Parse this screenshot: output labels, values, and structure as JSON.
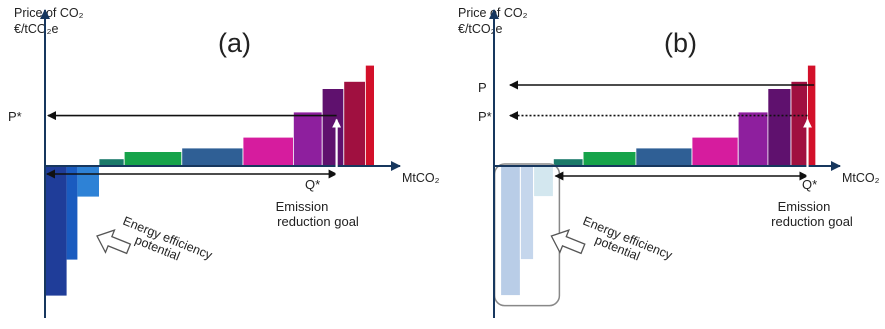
{
  "colors": {
    "axis": "#17375e",
    "arrow": "#111111",
    "note_arrow": "#ffffff",
    "highlight_box": "#888888"
  },
  "chart_data": [
    {
      "type": "bar",
      "panel_label": "(a)",
      "y_axis_title_line1": "Price of CO₂",
      "y_axis_title_line2": "€/tCO₂e",
      "x_axis_label": "MtCO₂",
      "price_labels": [
        "P*"
      ],
      "price_levels": [
        {
          "label": "P*",
          "value": 0.28,
          "style": "solid"
        }
      ],
      "q_label": "Q*",
      "goal_label_line1": "Emission",
      "goal_label_line2": "reduction goal",
      "ee_label_line1": "Energy efficiency",
      "ee_label_line2": "potential",
      "xlim": [
        0,
        100
      ],
      "ylim": [
        -0.72,
        0.58
      ],
      "quantity_span": [
        0,
        81
      ],
      "negative_bars": [
        {
          "x0": 0,
          "x1": 6,
          "value": -0.72,
          "color": "#1f3d99"
        },
        {
          "x0": 6,
          "x1": 9,
          "value": -0.52,
          "color": "#1a5bbf"
        },
        {
          "x0": 9,
          "x1": 15,
          "value": -0.17,
          "color": "#2e82d6"
        }
      ],
      "positive_bars": [
        {
          "x0": 15,
          "x1": 22,
          "value": 0.04,
          "color": "#1b7a6a"
        },
        {
          "x0": 22,
          "x1": 38,
          "value": 0.08,
          "color": "#16a34a"
        },
        {
          "x0": 38,
          "x1": 55,
          "value": 0.1,
          "color": "#2f5f95"
        },
        {
          "x0": 55,
          "x1": 69,
          "value": 0.16,
          "color": "#d61c9e"
        },
        {
          "x0": 69,
          "x1": 77,
          "value": 0.3,
          "color": "#8e1f9e"
        },
        {
          "x0": 77,
          "x1": 83,
          "value": 0.43,
          "color": "#5f116e"
        },
        {
          "x0": 83,
          "x1": 89,
          "value": 0.47,
          "color": "#a01040"
        },
        {
          "x0": 89,
          "x1": 91.5,
          "value": 0.56,
          "color": "#d3102a"
        }
      ],
      "greyed_energy_efficiency": false
    },
    {
      "type": "bar",
      "panel_label": "(b)",
      "y_axis_title_line1": "Price of CO₂",
      "y_axis_title_line2": "€/tCO₂e",
      "x_axis_label": "MtCO₂",
      "price_labels": [
        "P",
        "P*"
      ],
      "price_levels": [
        {
          "label": "P",
          "value": 0.45,
          "style": "solid"
        },
        {
          "label": "P*",
          "value": 0.28,
          "style": "dotted"
        }
      ],
      "q_label": "Q*",
      "goal_label_line1": "Emission",
      "goal_label_line2": "reduction goal",
      "ee_label_line1": "Energy efficiency",
      "ee_label_line2": "potential",
      "xlim": [
        0,
        100
      ],
      "ylim": [
        -0.72,
        0.58
      ],
      "quantity_span": [
        18,
        95
      ],
      "negative_bars": [
        {
          "x0": 2,
          "x1": 8,
          "value": -0.72,
          "color": "#b9cde7"
        },
        {
          "x0": 8,
          "x1": 12,
          "value": -0.52,
          "color": "#c5d6ec"
        },
        {
          "x0": 12,
          "x1": 18,
          "value": -0.17,
          "color": "#d3e7ef"
        }
      ],
      "positive_bars": [
        {
          "x0": 18,
          "x1": 27,
          "value": 0.04,
          "color": "#1b7a6a"
        },
        {
          "x0": 27,
          "x1": 43,
          "value": 0.08,
          "color": "#16a34a"
        },
        {
          "x0": 43,
          "x1": 60,
          "value": 0.1,
          "color": "#2f5f95"
        },
        {
          "x0": 60,
          "x1": 74,
          "value": 0.16,
          "color": "#d61c9e"
        },
        {
          "x0": 74,
          "x1": 83,
          "value": 0.3,
          "color": "#8e1f9e"
        },
        {
          "x0": 83,
          "x1": 90,
          "value": 0.43,
          "color": "#5f116e"
        },
        {
          "x0": 90,
          "x1": 95,
          "value": 0.47,
          "color": "#a01040"
        },
        {
          "x0": 95,
          "x1": 97.5,
          "value": 0.56,
          "color": "#d3102a"
        }
      ],
      "greyed_energy_efficiency": true
    }
  ]
}
